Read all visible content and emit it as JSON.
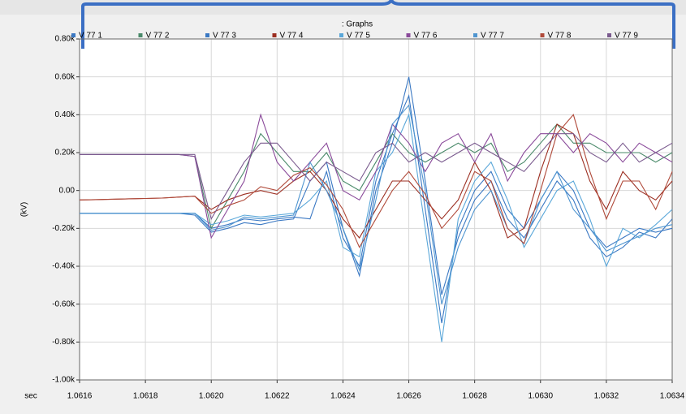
{
  "chart_data": {
    "type": "line",
    "title": ": Graphs",
    "x_label": "sec",
    "y_label": "(kV)",
    "x": [
      1.0616,
      1.06165,
      1.0617,
      1.06175,
      1.0618,
      1.06185,
      1.0619,
      1.06195,
      1.062,
      1.06205,
      1.0621,
      1.06215,
      1.0622,
      1.06225,
      1.0623,
      1.06235,
      1.0624,
      1.06245,
      1.0625,
      1.06255,
      1.0626,
      1.06265,
      1.0627,
      1.06275,
      1.0628,
      1.06285,
      1.0629,
      1.06295,
      1.063,
      1.06305,
      1.0631,
      1.06315,
      1.0632,
      1.06325,
      1.0633,
      1.06335,
      1.0634
    ],
    "series": [
      {
        "name": "V 77 1",
        "color": "#3a78c3",
        "values": [
          -0.12,
          -0.12,
          -0.12,
          -0.12,
          -0.12,
          -0.12,
          -0.12,
          -0.12,
          -0.2,
          -0.18,
          -0.15,
          -0.16,
          -0.15,
          -0.14,
          -0.15,
          0.1,
          -0.25,
          -0.4,
          0.05,
          0.3,
          0.5,
          -0.1,
          -0.7,
          -0.2,
          0.0,
          0.1,
          -0.1,
          -0.2,
          -0.05,
          0.1,
          0.0,
          -0.2,
          -0.3,
          -0.25,
          -0.2,
          -0.22,
          -0.2
        ]
      },
      {
        "name": "V 77 2",
        "color": "#4a8a6a",
        "values": [
          0.19,
          0.19,
          0.19,
          0.19,
          0.19,
          0.19,
          0.19,
          0.18,
          -0.2,
          -0.05,
          0.1,
          0.3,
          0.2,
          0.1,
          0.1,
          0.2,
          0.05,
          0.0,
          0.15,
          0.3,
          0.2,
          0.15,
          0.2,
          0.25,
          0.2,
          0.25,
          0.1,
          0.15,
          0.25,
          0.35,
          0.25,
          0.25,
          0.2,
          0.2,
          0.2,
          0.15,
          0.2
        ]
      },
      {
        "name": "V 77 3",
        "color": "#3a78c3",
        "values": [
          -0.12,
          -0.12,
          -0.12,
          -0.12,
          -0.12,
          -0.12,
          -0.12,
          -0.13,
          -0.22,
          -0.2,
          -0.17,
          -0.18,
          -0.16,
          -0.15,
          0.05,
          0.15,
          -0.2,
          -0.45,
          0.0,
          0.25,
          0.6,
          0.05,
          -0.55,
          -0.25,
          -0.05,
          0.05,
          -0.15,
          -0.25,
          -0.1,
          0.05,
          -0.05,
          -0.25,
          -0.35,
          -0.3,
          -0.22,
          -0.25,
          -0.15
        ]
      },
      {
        "name": "V 77 4",
        "color": "#9b2d20",
        "values": [
          -0.05,
          -0.048,
          -0.046,
          -0.044,
          -0.042,
          -0.04,
          -0.035,
          -0.03,
          -0.1,
          -0.05,
          -0.02,
          0.0,
          -0.02,
          0.05,
          0.1,
          0.0,
          -0.15,
          -0.25,
          -0.1,
          0.05,
          0.05,
          -0.05,
          -0.15,
          -0.05,
          0.15,
          0.0,
          -0.25,
          -0.2,
          0.1,
          0.35,
          0.3,
          0.05,
          -0.1,
          0.1,
          0.0,
          -0.05,
          0.05
        ]
      },
      {
        "name": "V 77 5",
        "color": "#5aa7d9",
        "values": [
          -0.12,
          -0.12,
          -0.12,
          -0.12,
          -0.12,
          -0.12,
          -0.12,
          -0.12,
          -0.18,
          -0.16,
          -0.13,
          -0.14,
          -0.13,
          -0.12,
          -0.05,
          0.05,
          -0.3,
          -0.35,
          0.1,
          0.2,
          0.4,
          -0.2,
          -0.8,
          -0.15,
          0.05,
          0.15,
          -0.05,
          -0.3,
          -0.15,
          0.0,
          0.05,
          -0.15,
          -0.4,
          -0.2,
          -0.25,
          -0.18,
          -0.1
        ]
      },
      {
        "name": "V 77 6",
        "color": "#8a4a9a",
        "values": [
          0.19,
          0.19,
          0.19,
          0.19,
          0.19,
          0.19,
          0.19,
          0.18,
          -0.25,
          -0.1,
          0.05,
          0.4,
          0.15,
          0.05,
          0.15,
          0.25,
          0.0,
          -0.05,
          0.1,
          0.35,
          0.25,
          0.1,
          0.25,
          0.3,
          0.15,
          0.3,
          0.05,
          0.2,
          0.3,
          0.3,
          0.2,
          0.3,
          0.25,
          0.15,
          0.25,
          0.2,
          0.15
        ]
      },
      {
        "name": "V 77 7",
        "color": "#4f95d0",
        "values": [
          -0.12,
          -0.12,
          -0.12,
          -0.12,
          -0.12,
          -0.12,
          -0.12,
          -0.12,
          -0.21,
          -0.19,
          -0.14,
          -0.15,
          -0.14,
          -0.13,
          0.15,
          0.0,
          -0.2,
          -0.42,
          -0.05,
          0.35,
          0.45,
          0.0,
          -0.6,
          -0.3,
          -0.1,
          0.0,
          -0.2,
          -0.28,
          -0.05,
          0.1,
          -0.1,
          -0.2,
          -0.32,
          -0.28,
          -0.24,
          -0.2,
          -0.18
        ]
      },
      {
        "name": "V 77 8",
        "color": "#b04a3a",
        "values": [
          -0.05,
          -0.048,
          -0.046,
          -0.044,
          -0.042,
          -0.04,
          -0.035,
          -0.03,
          -0.12,
          -0.08,
          -0.05,
          0.02,
          0.0,
          0.08,
          0.12,
          0.03,
          -0.1,
          -0.3,
          -0.15,
          0.0,
          0.1,
          -0.02,
          -0.2,
          -0.1,
          0.1,
          0.05,
          -0.2,
          -0.28,
          0.0,
          0.3,
          0.4,
          0.1,
          -0.15,
          0.05,
          0.05,
          -0.1,
          0.1
        ]
      },
      {
        "name": "V 77 9",
        "color": "#7a5a8e",
        "values": [
          0.19,
          0.19,
          0.19,
          0.19,
          0.19,
          0.19,
          0.19,
          0.19,
          -0.15,
          0.0,
          0.15,
          0.25,
          0.25,
          0.15,
          0.05,
          0.15,
          0.1,
          0.05,
          0.2,
          0.25,
          0.15,
          0.2,
          0.15,
          0.2,
          0.25,
          0.2,
          0.15,
          0.1,
          0.2,
          0.3,
          0.3,
          0.2,
          0.15,
          0.25,
          0.15,
          0.2,
          0.25
        ]
      }
    ],
    "xlim": [
      1.0616,
      1.0634
    ],
    "xticks": [
      1.0616,
      1.0618,
      {
        "value": 1.062,
        "label": "1.0620"
      },
      1.0622,
      1.0624,
      1.0626,
      1.0628,
      {
        "value": 1.063,
        "label": "1.0630"
      },
      1.0632,
      1.0634
    ],
    "ylim": [
      -1,
      0.8
    ],
    "yticks": [
      {
        "value": -1,
        "label": "-1.00k"
      },
      {
        "value": -0.8,
        "label": "-0.80k"
      },
      {
        "value": -0.6,
        "label": "-0.60k"
      },
      {
        "value": -0.4,
        "label": "-0.40k"
      },
      {
        "value": -0.2,
        "label": "-0.20k"
      },
      {
        "value": 0,
        "label": "0.00"
      },
      {
        "value": 0.2,
        "label": "0.20k"
      },
      {
        "value": 0.4,
        "label": "0.40k"
      },
      {
        "value": 0.6,
        "label": "0.60k"
      },
      {
        "value": 0.8,
        "label": "0.80k"
      }
    ],
    "grid": true
  }
}
